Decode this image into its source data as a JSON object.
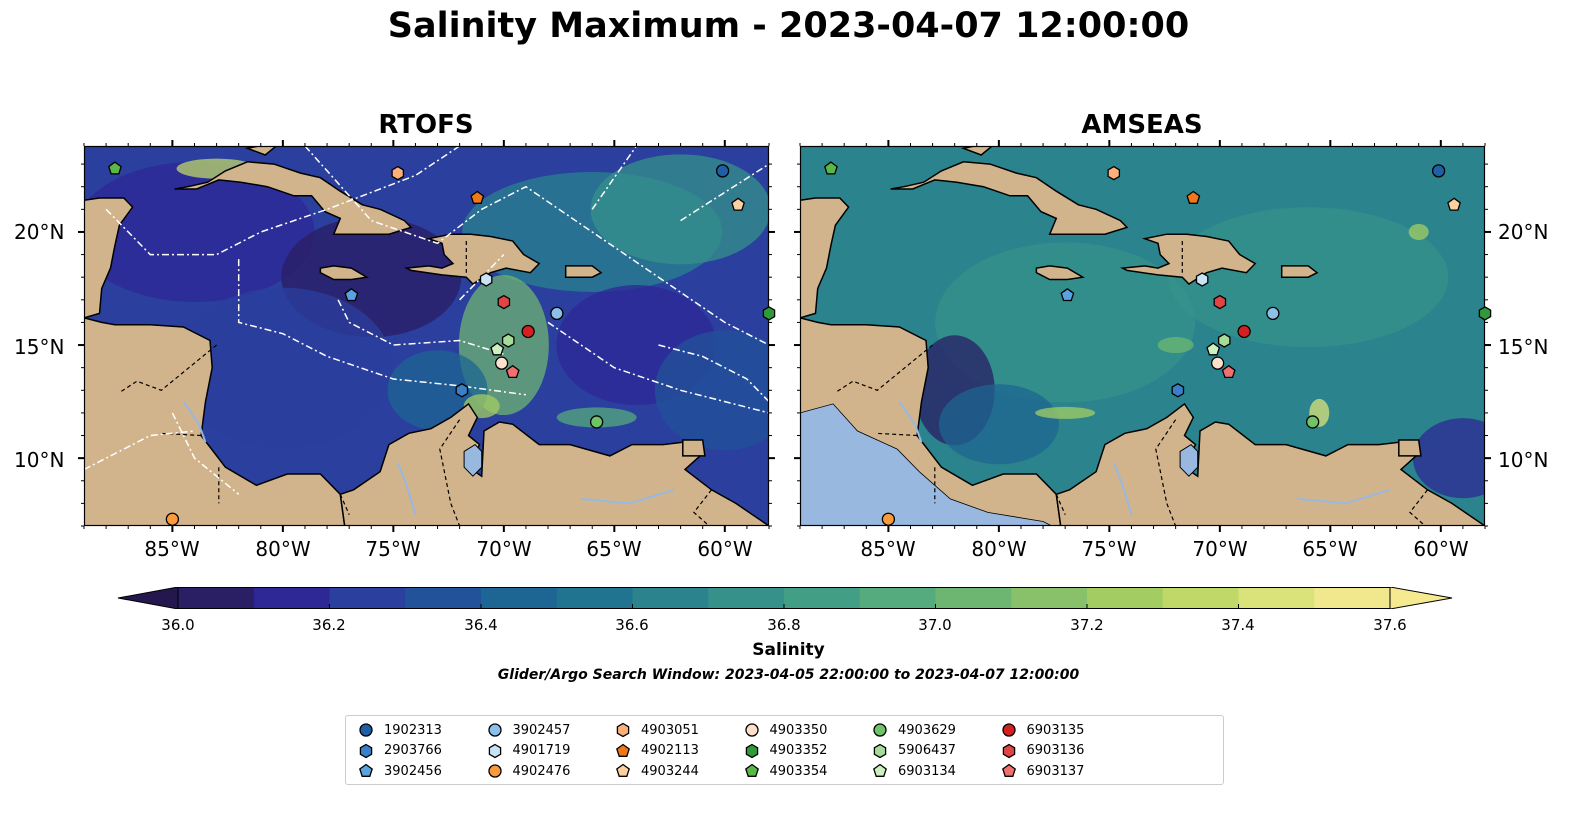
{
  "title": "Salinity Maximum - 2023-04-07 12:00:00",
  "panels": [
    {
      "id": "rtofs",
      "title": "RTOFS"
    },
    {
      "id": "amseas",
      "title": "AMSEAS"
    }
  ],
  "lat_labels": [
    "20°N",
    "15°N",
    "10°N"
  ],
  "lon_labels": [
    "85°W",
    "80°W",
    "75°W",
    "70°W",
    "65°W",
    "60°W"
  ],
  "colorbar": {
    "label": "Salinity",
    "ticks": [
      "36.0",
      "36.2",
      "36.4",
      "36.6",
      "36.8",
      "37.0",
      "37.2",
      "37.4",
      "37.6"
    ],
    "min": 36.0,
    "max": 37.6,
    "step": 0.1,
    "colors": [
      "#2a1e64",
      "#2d2896",
      "#2b3f9e",
      "#22539a",
      "#1d6592",
      "#20748f",
      "#2a838d",
      "#36918b",
      "#439e86",
      "#55ab7d",
      "#6db672",
      "#88c169",
      "#a3cd62",
      "#bfd868",
      "#dae27a",
      "#f1e78d"
    ],
    "extend_min_color": "#24174e",
    "extend_max_color": "#f6ea90"
  },
  "search_window": "Glider/Argo Search Window: 2023-04-05 22:00:00 to 2023-04-07 12:00:00",
  "map_extent": {
    "lon_min": -89.0,
    "lon_max": -58.0,
    "lat_min": 7.0,
    "lat_max": 23.8
  },
  "colors": {
    "land": "#d2b48c",
    "lake": "#98b8e0"
  },
  "floats": [
    {
      "id": "1902313",
      "marker": "circle",
      "color": "#1f5fa8",
      "lon": -60.1,
      "lat": 22.7
    },
    {
      "id": "2903766",
      "marker": "hexagon",
      "color": "#3a80c8",
      "lon": -71.9,
      "lat": 13.0
    },
    {
      "id": "3902456",
      "marker": "pentagon",
      "color": "#5aa2e0",
      "lon": -76.9,
      "lat": 17.2
    },
    {
      "id": "3902457",
      "marker": "circle",
      "color": "#8cc0ea",
      "lon": -67.6,
      "lat": 16.4
    },
    {
      "id": "4901719",
      "marker": "hexagon",
      "color": "#c8e2f6",
      "lon": -70.8,
      "lat": 17.9
    },
    {
      "id": "4902476",
      "marker": "circle",
      "color": "#fa9a3c",
      "lon": -85.0,
      "lat": 7.3
    },
    {
      "id": "4903051",
      "marker": "hexagon",
      "color": "#fdb07a",
      "lon": -74.8,
      "lat": 22.6
    },
    {
      "id": "4902113",
      "marker": "pentagon",
      "color": "#f07818",
      "lon": -71.2,
      "lat": 21.5
    },
    {
      "id": "4903244",
      "marker": "pentagon",
      "color": "#fdd0a0",
      "lon": -59.4,
      "lat": 21.2
    },
    {
      "id": "4903350",
      "marker": "circle",
      "color": "#fde0cc",
      "lon": -70.1,
      "lat": 14.2
    },
    {
      "id": "4903352",
      "marker": "hexagon",
      "color": "#2e9a3c",
      "lon": -58.0,
      "lat": 16.4
    },
    {
      "id": "4903354",
      "marker": "pentagon",
      "color": "#5ab848",
      "lon": -87.6,
      "lat": 22.8
    },
    {
      "id": "4903629",
      "marker": "circle",
      "color": "#70c468",
      "lon": -65.8,
      "lat": 11.6
    },
    {
      "id": "5906437",
      "marker": "hexagon",
      "color": "#a4dc98",
      "lon": -69.8,
      "lat": 15.2
    },
    {
      "id": "6903134",
      "marker": "pentagon",
      "color": "#ccf0c0",
      "lon": -70.3,
      "lat": 14.8
    },
    {
      "id": "6903135",
      "marker": "circle",
      "color": "#d42020",
      "lon": -68.9,
      "lat": 15.6
    },
    {
      "id": "6903136",
      "marker": "hexagon",
      "color": "#e24444",
      "lon": -70.0,
      "lat": 16.9
    },
    {
      "id": "6903137",
      "marker": "pentagon",
      "color": "#f07070",
      "lon": -69.6,
      "lat": 13.8
    }
  ]
}
